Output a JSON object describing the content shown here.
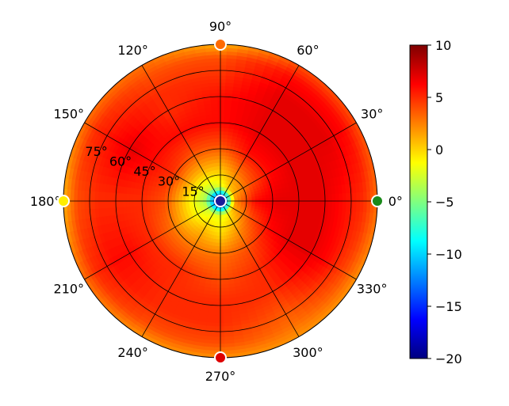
{
  "chart_data": {
    "type": "heatmap",
    "subtype": "polar",
    "angle_ticks": [
      "0°",
      "30°",
      "60°",
      "90°",
      "120°",
      "150°",
      "180°",
      "210°",
      "240°",
      "270°",
      "300°",
      "330°"
    ],
    "radius_ticks": [
      "15°",
      "30°",
      "45°",
      "60°",
      "75°"
    ],
    "radius_range_deg": [
      0,
      90
    ],
    "radius_grid_deg": [
      15,
      30,
      45,
      60,
      75
    ],
    "grid": true,
    "colormap": "jet",
    "colorbar": {
      "min": -20,
      "max": 10,
      "ticks": [
        "10",
        "5",
        "0",
        "−5",
        "−10",
        "−15",
        "−20"
      ],
      "tick_values": [
        10,
        5,
        0,
        -5,
        -10,
        -15,
        -20
      ],
      "placement": "right"
    },
    "azimuths_deg": [
      0,
      30,
      60,
      90,
      120,
      150,
      180,
      210,
      240,
      270,
      300,
      330
    ],
    "elevation_rings_deg": [
      0,
      8,
      20,
      32,
      45,
      58,
      70,
      82,
      90
    ],
    "values": [
      [
        -20,
        2,
        6,
        7,
        7,
        7,
        6,
        5,
        3
      ],
      [
        -20,
        1,
        4,
        6,
        7,
        7,
        7,
        6,
        4
      ],
      [
        -20,
        0,
        3,
        6,
        7,
        7,
        7,
        6,
        4
      ],
      [
        -20,
        -2,
        1,
        4,
        6,
        6,
        5,
        4,
        1
      ],
      [
        -20,
        -3,
        1,
        4,
        6,
        5,
        5,
        4,
        3
      ],
      [
        -20,
        -4,
        1,
        5,
        6,
        7,
        6,
        5,
        3
      ],
      [
        -20,
        -4,
        0,
        4,
        5,
        5,
        5,
        4,
        1
      ],
      [
        -20,
        -3,
        0,
        3,
        5,
        6,
        6,
        5,
        3
      ],
      [
        -20,
        -2,
        1,
        3,
        5,
        5,
        5,
        4,
        2
      ],
      [
        -20,
        -2,
        0,
        3,
        4,
        5,
        5,
        4,
        2
      ],
      [
        -20,
        -1,
        2,
        4,
        5,
        5,
        4,
        3,
        2
      ],
      [
        -20,
        1,
        4,
        6,
        7,
        7,
        6,
        4,
        2
      ]
    ],
    "markers": [
      {
        "azimuth_deg": 0,
        "elevation_deg": 90,
        "color": "#1a8a1a"
      },
      {
        "azimuth_deg": 90,
        "elevation_deg": 90,
        "color": "#ff6a00"
      },
      {
        "azimuth_deg": 180,
        "elevation_deg": 90,
        "color": "#ffee00"
      },
      {
        "azimuth_deg": 270,
        "elevation_deg": 90,
        "color": "#dd0000"
      },
      {
        "azimuth_deg": 0,
        "elevation_deg": 0,
        "color": "#1a1a99"
      }
    ]
  }
}
